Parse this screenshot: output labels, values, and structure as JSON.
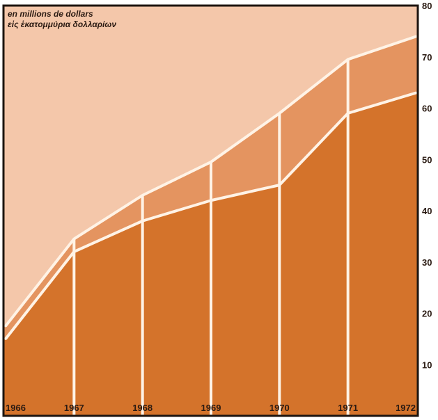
{
  "chart_data": {
    "type": "area",
    "stacked": true,
    "title": "en millions de dollars",
    "subtitle": "εἰς ἑκατομμύρια δολλαρίων",
    "categories": [
      "1966",
      "1967",
      "1968",
      "1969",
      "1970",
      "1971",
      "1972"
    ],
    "series": [
      {
        "values": [
          15,
          32,
          38,
          42,
          45,
          59,
          63
        ]
      },
      {
        "values": [
          2.5,
          2.5,
          5,
          7.5,
          14,
          10.5,
          11
        ]
      }
    ],
    "totals": [
      17.5,
      34.5,
      43,
      49.5,
      59,
      69.5,
      74
    ],
    "y_ticks": [
      "10",
      "20",
      "30",
      "40",
      "50",
      "60",
      "70",
      "80"
    ],
    "ylim": [
      0,
      80
    ],
    "colors": {
      "background": "#f4c7aa",
      "lower_area": "#d4732b",
      "upper_area": "#e49460",
      "lines": "#fff3e6",
      "frame": "#1c140f"
    }
  }
}
